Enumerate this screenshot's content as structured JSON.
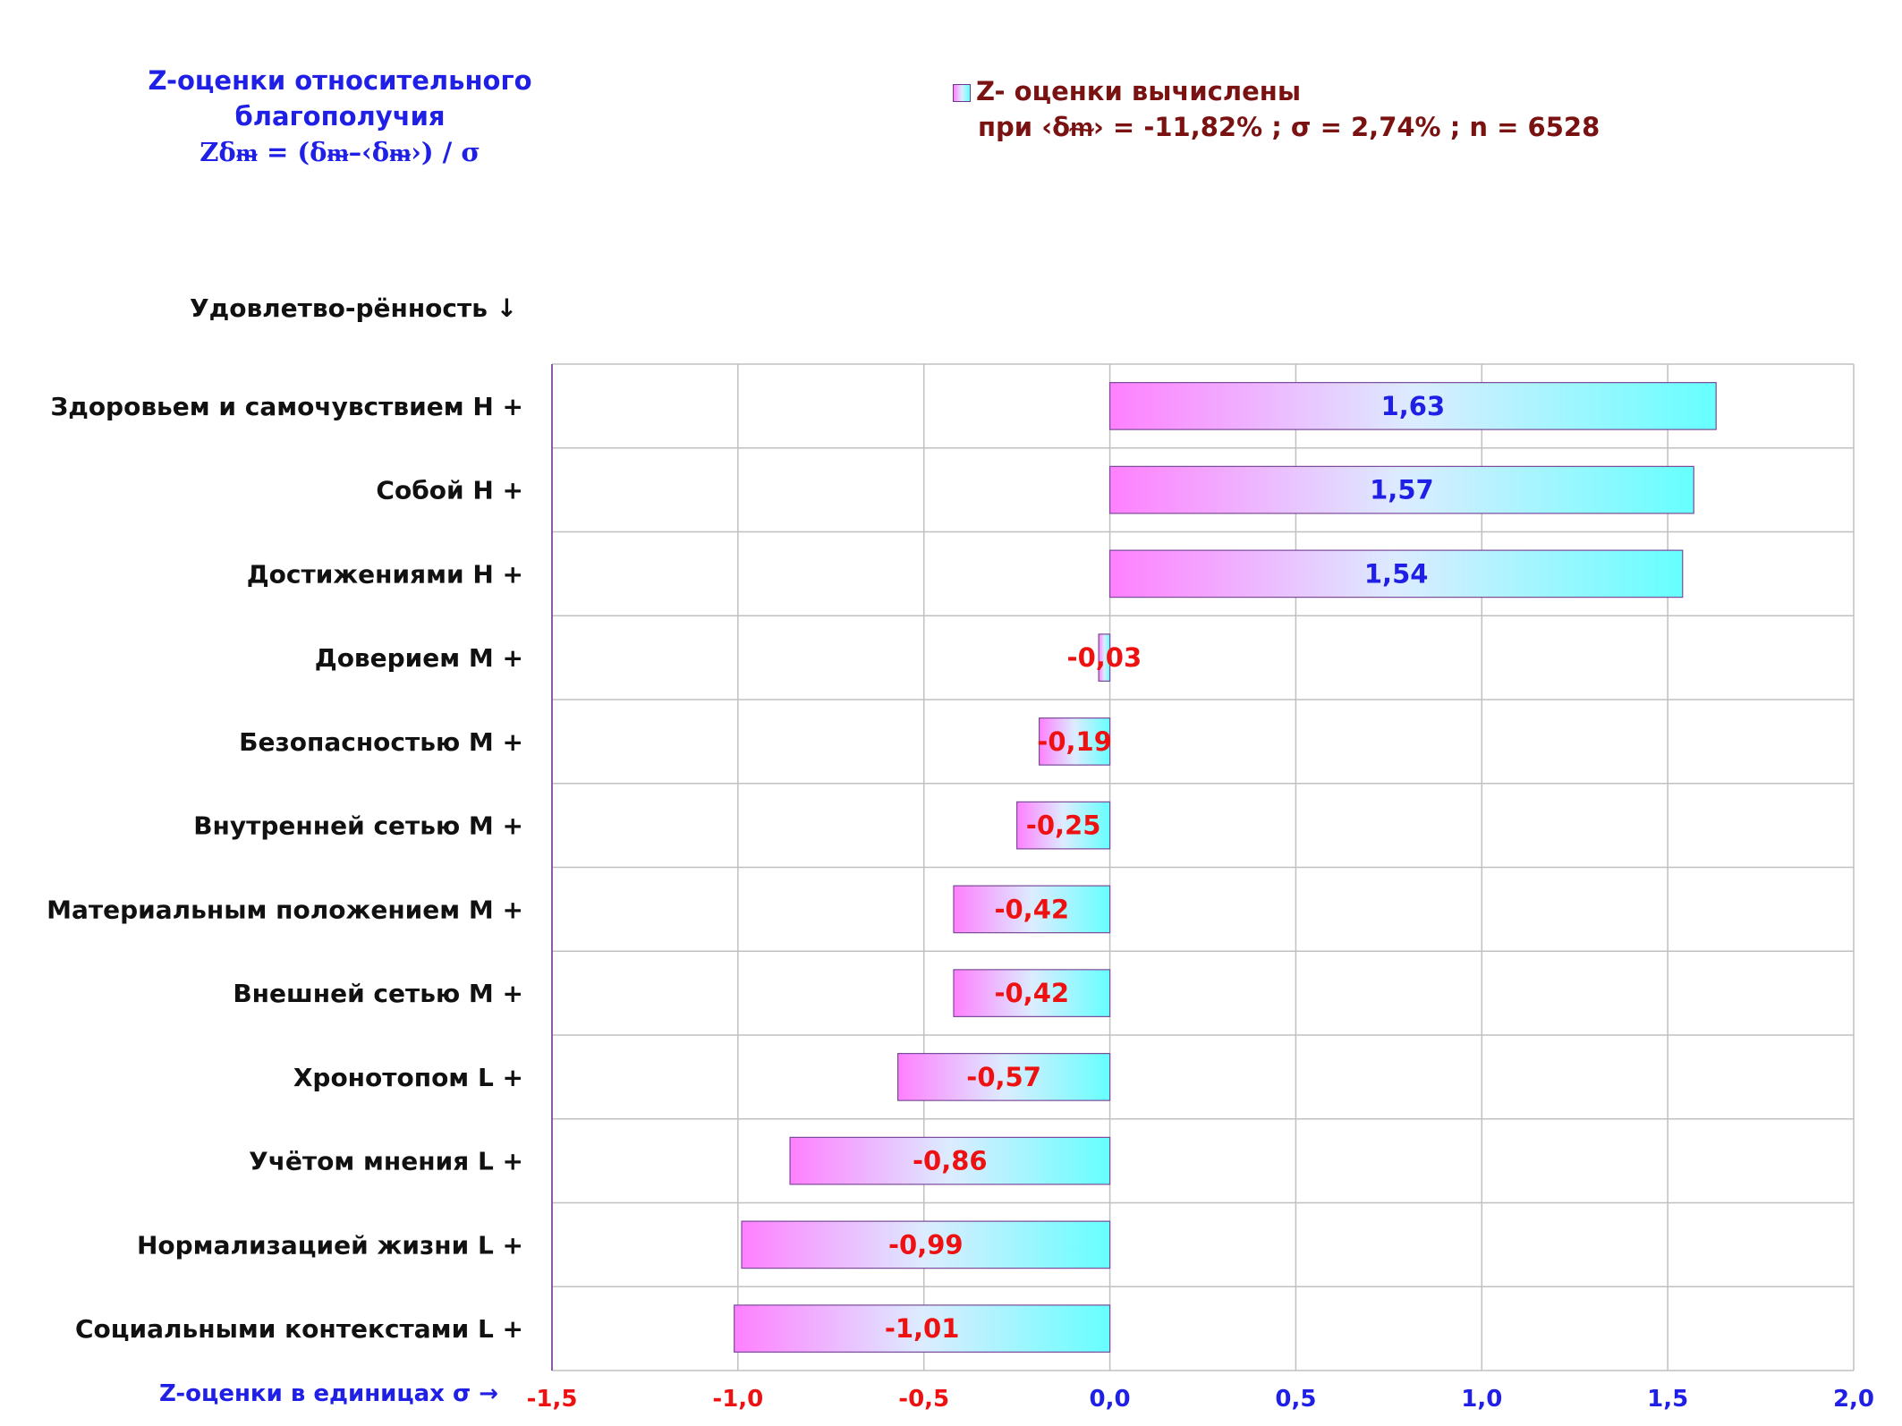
{
  "title": {
    "line1": "Z-оценки  относительного",
    "line2": "благополучия",
    "line3": "Zδᵯ = (δᵯ–‹δᵯ›) / σ"
  },
  "legend": {
    "line1": "Z- оценки вычислены",
    "line2": "при ‹δᵯ› = -11,82% ; σ = 2,74% ; n = 6528"
  },
  "colors": {
    "bar_left": "#ff80ff",
    "bar_mid": "#dcecff",
    "bar_right": "#66ffff",
    "positive_label": "#1f1fe6",
    "negative_label": "#ee1111",
    "grid": "#c0c0c0",
    "axis": "#8a5aa8"
  },
  "chart_data": {
    "type": "bar",
    "orientation": "horizontal",
    "ylabel": "Удовлетво-рённость ↓",
    "xlabel": "Z-оценки в единицах σ →",
    "xlim": [
      -1.5,
      2.0
    ],
    "xticks": [
      -1.5,
      -1.0,
      -0.5,
      0.0,
      0.5,
      1.0,
      1.5,
      2.0
    ],
    "xtick_labels": [
      "-1,5",
      "-1,0",
      "-0,5",
      "0,0",
      "0,5",
      "1,0",
      "1,5",
      "2,0"
    ],
    "grid": true,
    "legend_position": "top-right",
    "categories": [
      "Здоровьем и самочувствием  H +",
      "Собой  H +",
      "Достижениями  H +",
      "Доверием  M +",
      "Безопасностью  M +",
      "Внутренней сетью  M +",
      "Материальным положением  M +",
      "Внешней сетью  M +",
      "Хронотопом  L +",
      "Учётом мнения  L +",
      "Нормализацией жизни  L +",
      "Социальными контекстами  L +"
    ],
    "values": [
      1.63,
      1.57,
      1.54,
      -0.03,
      -0.19,
      -0.25,
      -0.42,
      -0.42,
      -0.57,
      -0.86,
      -0.99,
      -1.01
    ],
    "value_labels": [
      "1,63",
      "1,57",
      "1,54",
      "-0,03",
      "-0,19",
      "-0,25",
      "-0,42",
      "-0,42",
      "-0,57",
      "-0,86",
      "-0,99",
      "-1,01"
    ]
  }
}
